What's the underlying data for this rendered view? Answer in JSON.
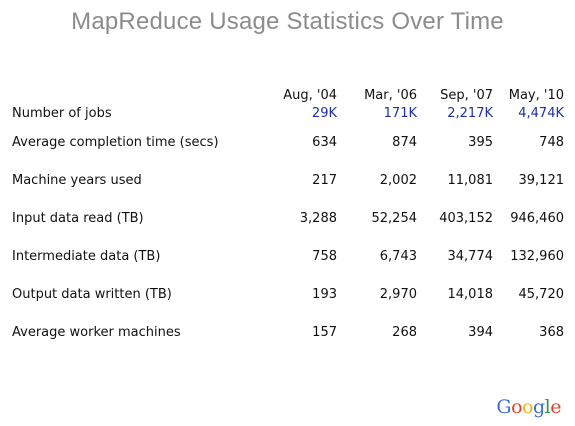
{
  "title": "MapReduce Usage Statistics Over Time",
  "table": {
    "columns": [
      "Aug, '04",
      "Mar, '06",
      "Sep, '07",
      "May, '10"
    ],
    "rows": [
      {
        "label": "Number of jobs",
        "values": [
          "29K",
          "171K",
          "2,217K",
          "4,474K"
        ]
      },
      {
        "label": "Average completion time (secs)",
        "values": [
          "634",
          "874",
          "395",
          "748"
        ]
      },
      {
        "label": "Machine years used",
        "values": [
          "217",
          "2,002",
          "11,081",
          "39,121"
        ]
      },
      {
        "label": "Input data read (TB)",
        "values": [
          "3,288",
          "52,254",
          "403,152",
          "946,460"
        ]
      },
      {
        "label": "Intermediate data (TB)",
        "values": [
          "758",
          "6,743",
          "34,774",
          "132,960"
        ]
      },
      {
        "label": "Output data written (TB)",
        "values": [
          "193",
          "2,970",
          "14,018",
          "45,720"
        ]
      },
      {
        "label": "Average worker machines",
        "values": [
          "157",
          "268",
          "394",
          "368"
        ]
      }
    ]
  },
  "logo": {
    "text": "Google",
    "colors": [
      "#3b6fd6",
      "#d8422f",
      "#f2b40f",
      "#3b6fd6",
      "#2f9a45",
      "#d8422f"
    ]
  },
  "colors": {
    "title": "#8c8c8c",
    "highlight_values": "#1e2fa8"
  }
}
